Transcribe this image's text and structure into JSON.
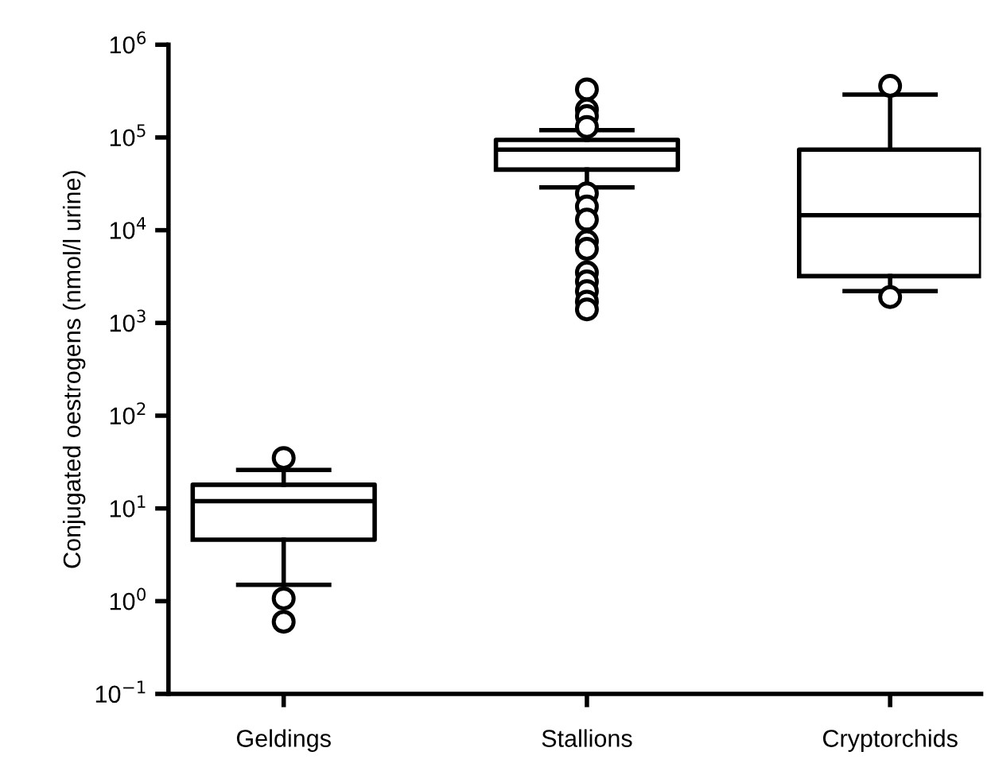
{
  "chart_data": {
    "type": "box",
    "ylabel": "Conjugated oestrogens (nmol/l urine)",
    "categories": [
      "Geldings",
      "Stallions",
      "Cryptorchids"
    ],
    "boxes": [
      {
        "low": 1.5,
        "q1": 4.6,
        "median": 12,
        "q3": 18,
        "high": 26,
        "outliers": [
          35,
          1.07,
          0.6
        ]
      },
      {
        "low": 29000,
        "q1": 45000,
        "median": 74000,
        "q3": 94000,
        "high": 120000,
        "outliers": [
          330000,
          200000,
          170000,
          130000,
          25000,
          18000,
          13000,
          7600,
          6300,
          3500,
          2800,
          2200,
          1700,
          1400
        ]
      },
      {
        "low": 2200,
        "q1": 3200,
        "median": 14500,
        "q3": 74000,
        "high": 290000,
        "outliers": [
          360000,
          1900
        ]
      }
    ],
    "log": true,
    "ylim": [
      0.1,
      1000000
    ],
    "yticks": [
      {
        "value": 0.1,
        "label": "10$^{−1}$"
      },
      {
        "value": 1,
        "label": "10$^{0}$"
      },
      {
        "value": 10,
        "label": "10$^{1}$"
      },
      {
        "value": 100,
        "label": "10$^{2}$"
      },
      {
        "value": 1000,
        "label": "10$^{3}$"
      },
      {
        "value": 10000,
        "label": "10$^{4}$"
      },
      {
        "value": 100000,
        "label": "10$^{5}$"
      },
      {
        "value": 1000000,
        "label": "10$^{6}$"
      }
    ],
    "grid": false,
    "legend": false
  }
}
